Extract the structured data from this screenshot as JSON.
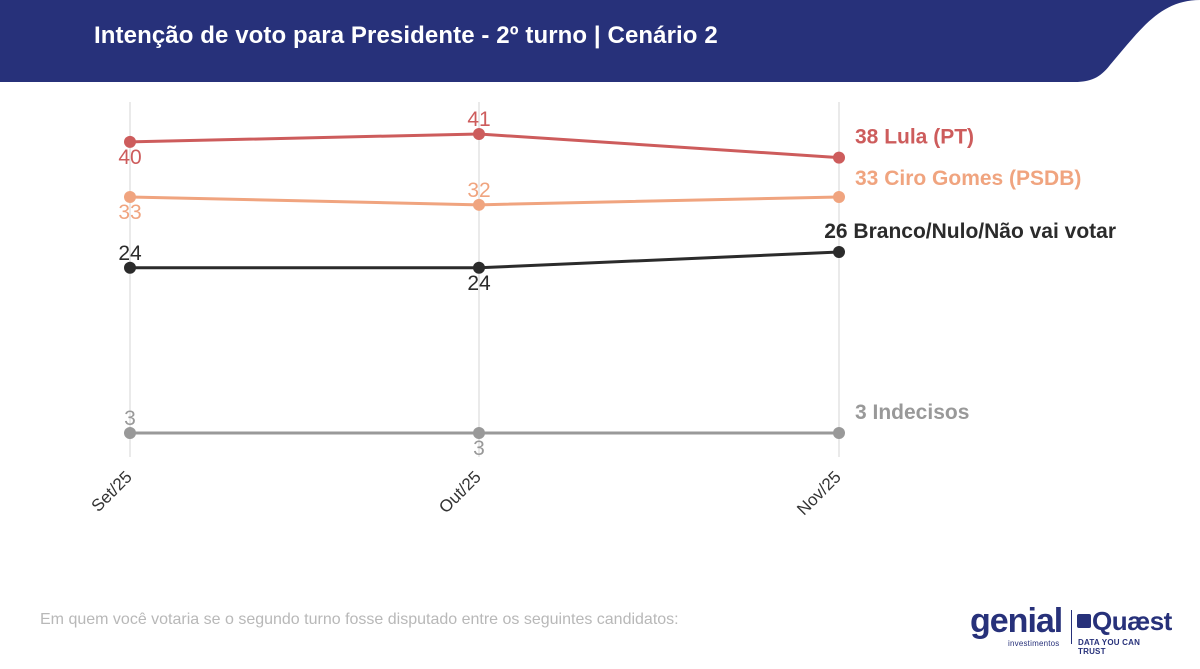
{
  "header": {
    "title": "Intenção de voto para Presidente - 2º turno | Cenário 2",
    "bg_color": "#27317a"
  },
  "footnote": "Em quem você votaria se o segundo turno fosse disputado entre os seguintes candidatos:",
  "logos": {
    "genial": "genial",
    "genial_sub": "investimentos",
    "quaest": "Quæst",
    "quaest_sub": "DATA YOU CAN TRUST"
  },
  "chart_data": {
    "type": "line",
    "title": "Intenção de voto para Presidente - 2º turno | Cenário 2",
    "xlabel": "",
    "ylabel": "",
    "categories": [
      "Set/25",
      "Out/25",
      "Nov/25"
    ],
    "ylim": [
      0,
      45
    ],
    "grid": "vertical",
    "series": [
      {
        "name": "Lula (PT)",
        "color": "#cd5c5c",
        "values": [
          40,
          41,
          38
        ],
        "point_labels": [
          "40",
          "41",
          ""
        ],
        "end_label": "38 Lula (PT)"
      },
      {
        "name": "Ciro Gomes (PSDB)",
        "color": "#f0a47f",
        "values": [
          33,
          32,
          33
        ],
        "point_labels": [
          "33",
          "32",
          ""
        ],
        "end_label": "33 Ciro Gomes (PSDB)"
      },
      {
        "name": "Branco/Nulo/Não vai votar",
        "color": "#2b2b2b",
        "values": [
          24,
          24,
          26
        ],
        "point_labels": [
          "24",
          "24",
          ""
        ],
        "end_label": "26 Branco/Nulo/Não vai votar"
      },
      {
        "name": "Indecisos",
        "color": "#999999",
        "values": [
          3,
          3,
          3
        ],
        "point_labels": [
          "3",
          "3",
          ""
        ],
        "end_label": "3 Indecisos"
      }
    ]
  }
}
